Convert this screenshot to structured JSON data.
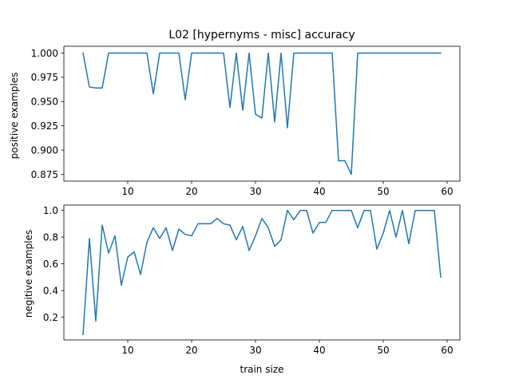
{
  "chart_data": [
    {
      "type": "line",
      "title": "L02 [hypernyms - misc] accuracy",
      "xlabel": "",
      "ylabel": "positive examples",
      "xlim": [
        0,
        62
      ],
      "ylim": [
        0.868,
        1.007
      ],
      "xticks": [
        10,
        20,
        30,
        40,
        50,
        60
      ],
      "yticks": [
        0.875,
        0.9,
        0.925,
        0.95,
        0.975,
        1.0
      ],
      "ytick_labels": [
        "0.875",
        "0.900",
        "0.925",
        "0.950",
        "0.975",
        "1.000"
      ],
      "grid": false,
      "color": "#1f77b4",
      "x": [
        3,
        4,
        5,
        6,
        7,
        8,
        9,
        10,
        11,
        12,
        13,
        14,
        15,
        16,
        17,
        18,
        19,
        20,
        21,
        22,
        23,
        24,
        25,
        26,
        27,
        28,
        29,
        30,
        31,
        32,
        33,
        34,
        35,
        36,
        37,
        38,
        39,
        40,
        41,
        42,
        43,
        44,
        45,
        46,
        47,
        48,
        49,
        50,
        51,
        52,
        53,
        54,
        55,
        56,
        57,
        58,
        59
      ],
      "y": [
        1.0,
        0.965,
        0.964,
        0.964,
        1.0,
        1.0,
        1.0,
        1.0,
        1.0,
        1.0,
        1.0,
        0.958,
        1.0,
        1.0,
        1.0,
        1.0,
        0.952,
        1.0,
        1.0,
        1.0,
        1.0,
        1.0,
        1.0,
        0.944,
        1.0,
        0.941,
        1.0,
        0.937,
        0.933,
        1.0,
        0.929,
        1.0,
        0.923,
        1.0,
        1.0,
        1.0,
        1.0,
        1.0,
        1.0,
        1.0,
        0.889,
        0.889,
        0.875,
        1.0,
        1.0,
        1.0,
        1.0,
        1.0,
        1.0,
        1.0,
        1.0,
        1.0,
        1.0,
        1.0,
        1.0,
        1.0,
        1.0
      ]
    },
    {
      "type": "line",
      "title": "",
      "xlabel": "train size",
      "ylabel": "negitive examples",
      "xlim": [
        0,
        62
      ],
      "ylim": [
        0.03,
        1.04
      ],
      "xticks": [
        10,
        20,
        30,
        40,
        50,
        60
      ],
      "yticks": [
        0.2,
        0.4,
        0.6,
        0.8,
        1.0
      ],
      "ytick_labels": [
        "0.2",
        "0.4",
        "0.6",
        "0.8",
        "1.0"
      ],
      "grid": false,
      "color": "#1f77b4",
      "x": [
        3,
        4,
        5,
        6,
        7,
        8,
        9,
        10,
        11,
        12,
        13,
        14,
        15,
        16,
        17,
        18,
        19,
        20,
        21,
        22,
        23,
        24,
        25,
        26,
        27,
        28,
        29,
        30,
        31,
        32,
        33,
        34,
        35,
        36,
        37,
        38,
        39,
        40,
        41,
        42,
        43,
        44,
        45,
        46,
        47,
        48,
        49,
        50,
        51,
        52,
        53,
        54,
        55,
        56,
        57,
        58,
        59
      ],
      "y": [
        0.07,
        0.79,
        0.17,
        0.89,
        0.68,
        0.81,
        0.44,
        0.65,
        0.69,
        0.52,
        0.76,
        0.87,
        0.79,
        0.87,
        0.7,
        0.86,
        0.82,
        0.81,
        0.9,
        0.9,
        0.9,
        0.94,
        0.9,
        0.89,
        0.78,
        0.88,
        0.7,
        0.81,
        0.94,
        0.87,
        0.73,
        0.78,
        1.0,
        0.93,
        1.0,
        1.0,
        0.83,
        0.91,
        0.91,
        1.0,
        1.0,
        1.0,
        1.0,
        0.87,
        1.0,
        1.0,
        0.71,
        0.83,
        1.0,
        0.8,
        1.0,
        0.75,
        1.0,
        1.0,
        1.0,
        1.0,
        0.5
      ]
    }
  ]
}
